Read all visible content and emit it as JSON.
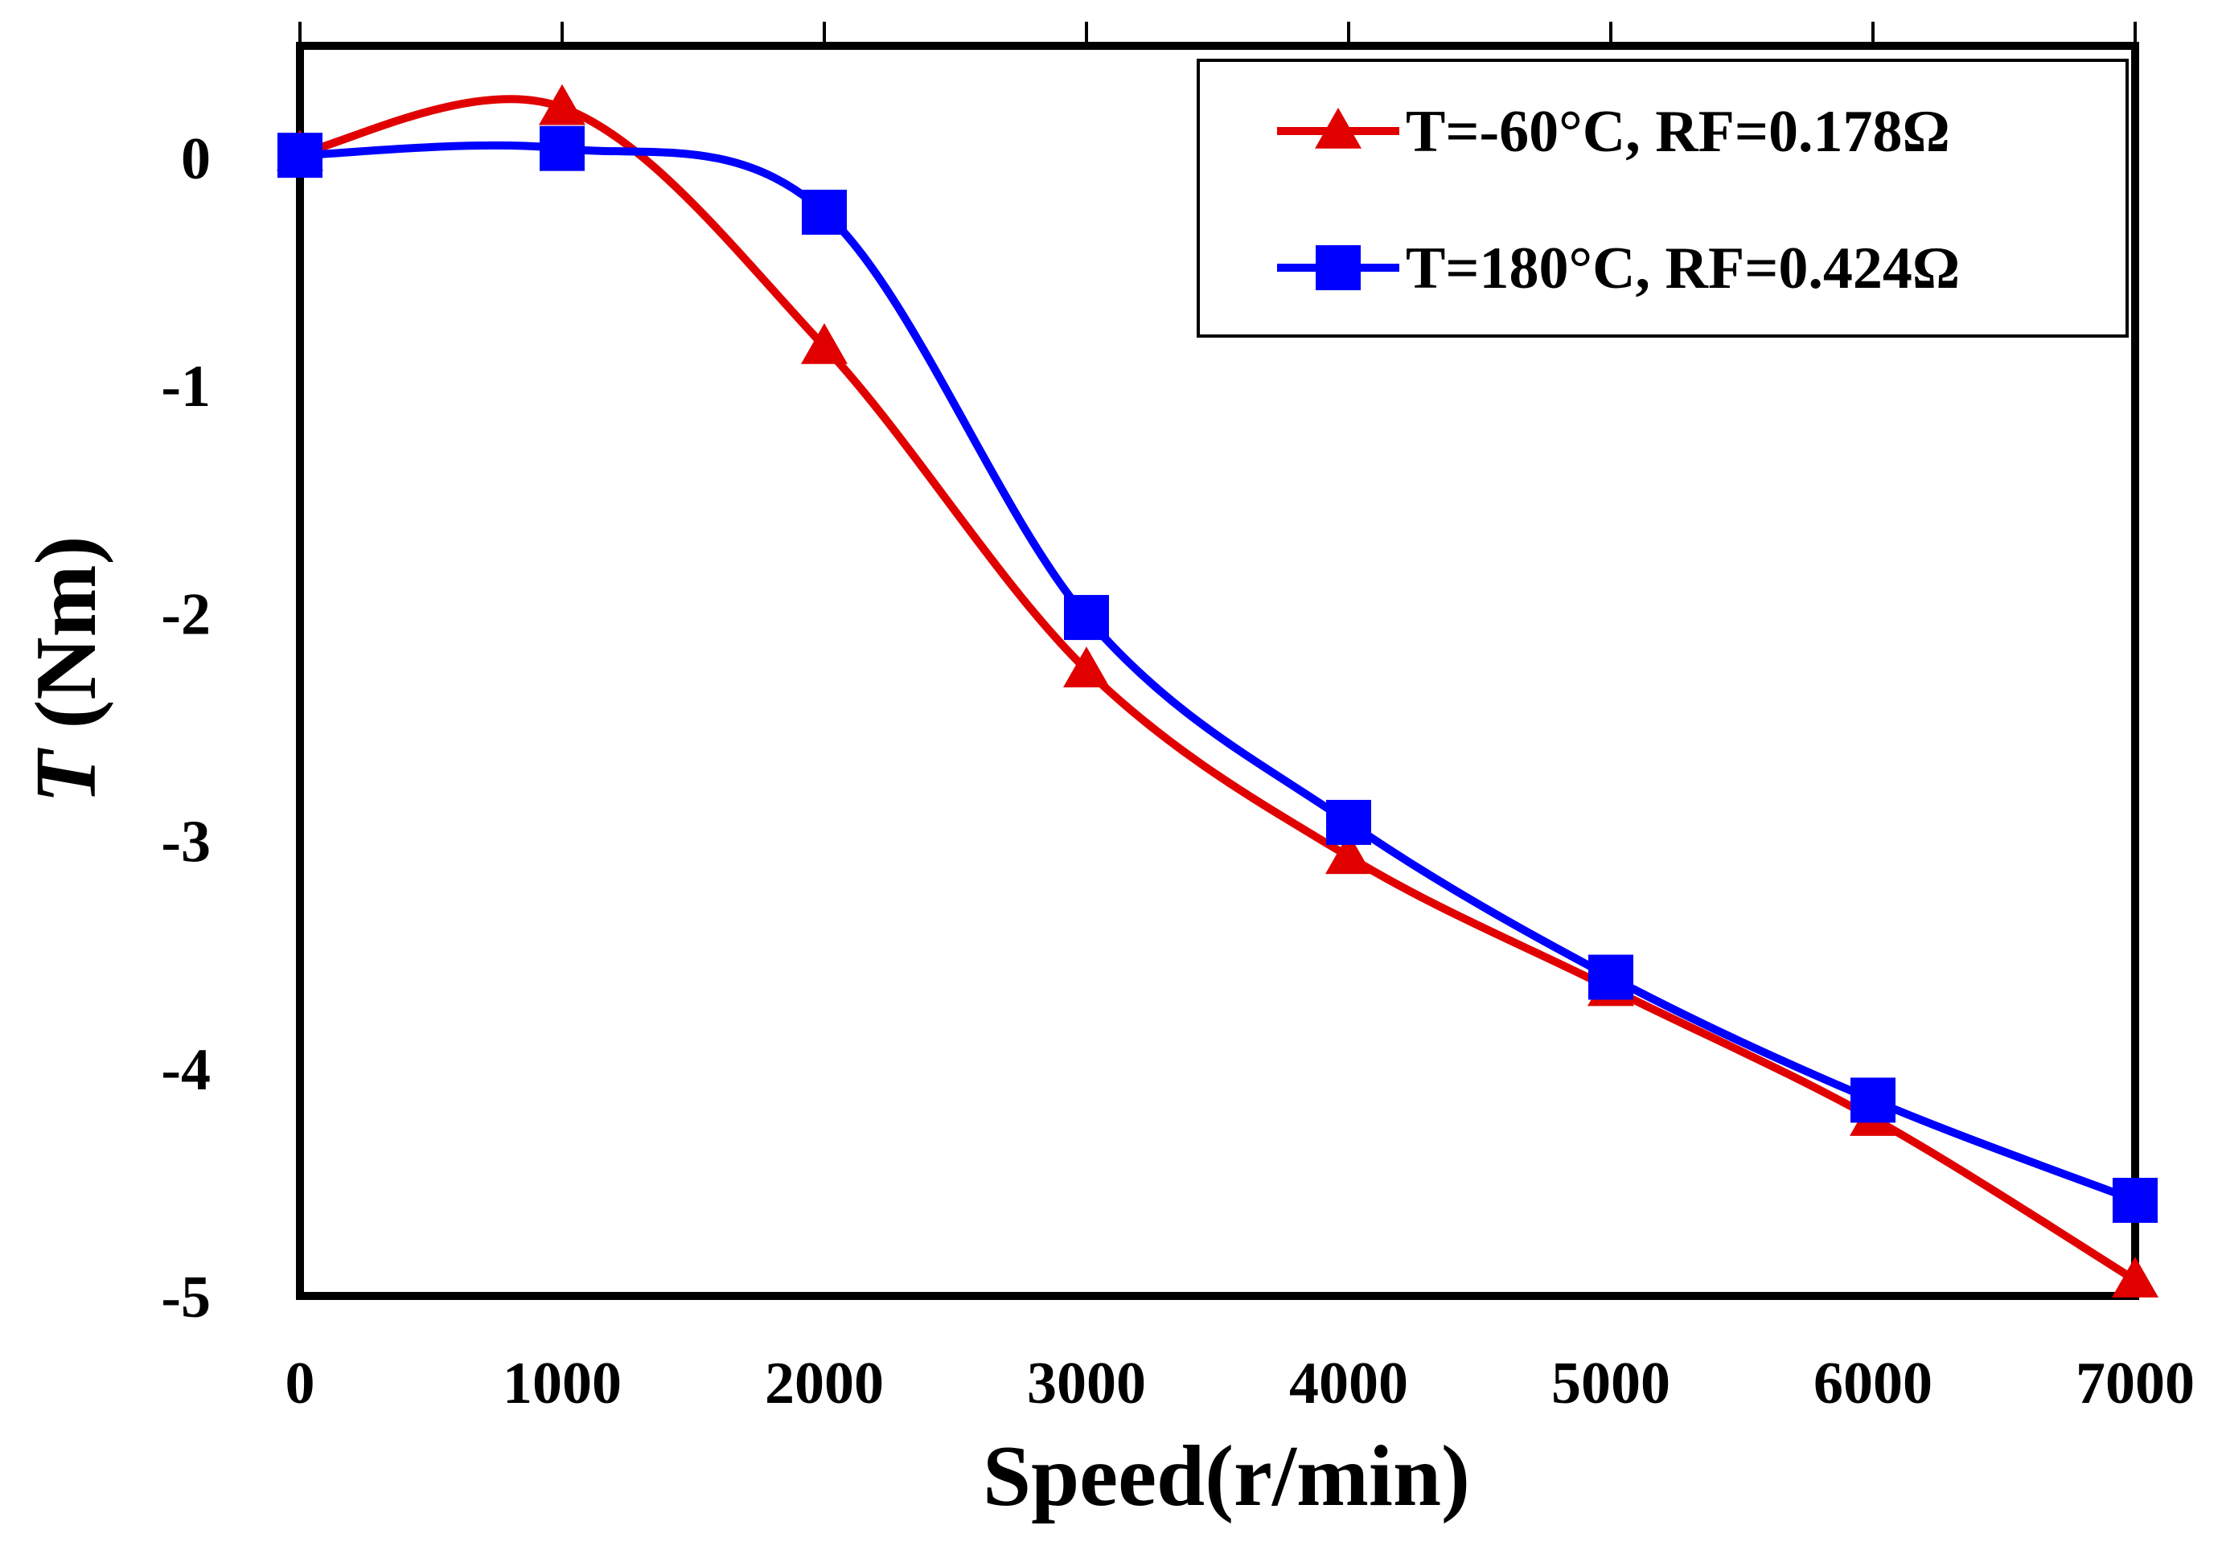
{
  "chart_data": {
    "type": "line",
    "title": "",
    "xlabel": "Speed(r/min)",
    "ylabel_italic": "T",
    "ylabel_unit": " (Nm)",
    "xlim": [
      0,
      7000
    ],
    "ylim": [
      -5,
      0.45
    ],
    "xticks": [
      0,
      1000,
      2000,
      3000,
      4000,
      5000,
      6000,
      7000
    ],
    "yticks": [
      0,
      -1,
      -2,
      -3,
      -4,
      -5
    ],
    "grid": false,
    "legend_position": "top-right",
    "x": [
      0,
      1000,
      2000,
      3000,
      4000,
      5000,
      6000,
      7000
    ],
    "series": [
      {
        "name": "T=-60°C, RF=0.178Ω",
        "marker": "triangle",
        "color": "#e00000",
        "values": [
          0.02,
          0.22,
          -0.83,
          -2.25,
          -3.07,
          -3.65,
          -4.22,
          -4.93
        ]
      },
      {
        "name": "T=180°C, RF=0.424Ω",
        "marker": "square",
        "color": "#0000ff",
        "values": [
          0.01,
          0.04,
          -0.24,
          -2.02,
          -2.92,
          -3.6,
          -4.14,
          -4.58
        ]
      }
    ]
  }
}
